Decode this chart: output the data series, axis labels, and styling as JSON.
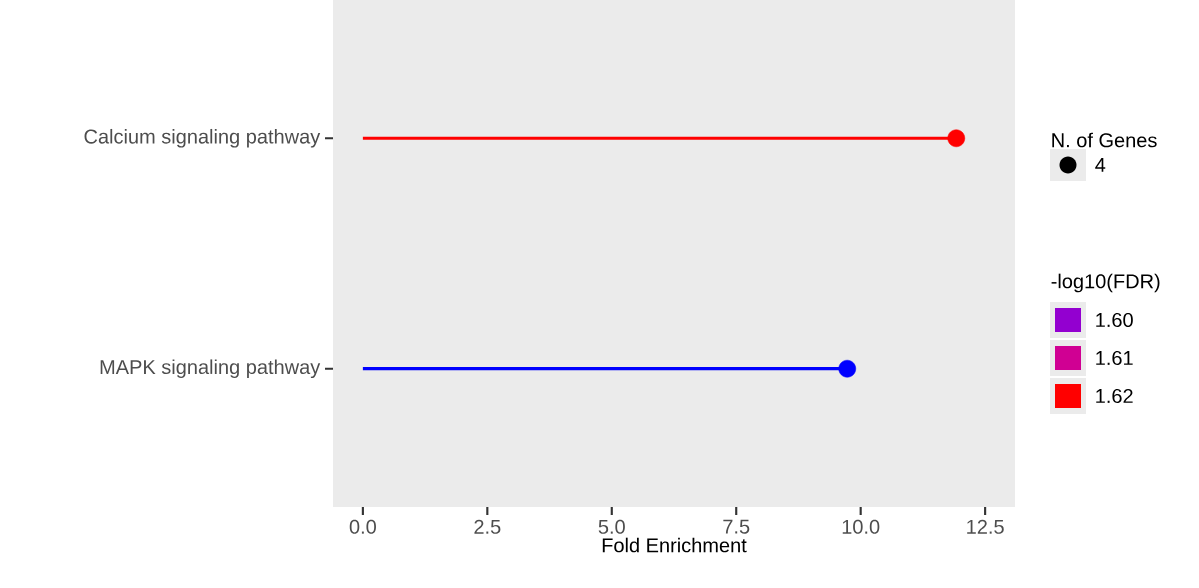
{
  "chart_data": {
    "type": "lollipop",
    "orientation": "horizontal",
    "xlabel": "Fold Enrichment",
    "legend_title": "N. of Genes",
    "clabel": "-log10(FDR)",
    "categories": [
      "Calcium signaling pathway",
      "MAPK signaling pathway"
    ],
    "values": [
      11.92,
      9.73
    ],
    "sizes": [
      4,
      4
    ],
    "size_legend": [
      4
    ],
    "colors": [
      "#ff0000",
      "#0000ff"
    ],
    "cticks": [
      {
        "value": 1.6,
        "label": "1.60"
      },
      {
        "value": 1.61,
        "label": "1.61"
      },
      {
        "value": 1.62,
        "label": "1.62"
      }
    ],
    "xlim": [
      -0.6,
      13.1
    ],
    "xticks": [
      {
        "value": 0,
        "label": "0.0"
      },
      {
        "value": 2.5,
        "label": "2.5"
      },
      {
        "value": 5,
        "label": "5.0"
      },
      {
        "value": 7.5,
        "label": "7.5"
      },
      {
        "value": 10,
        "label": "10.0"
      },
      {
        "value": 12.5,
        "label": "12.5"
      }
    ],
    "marker": "circle",
    "grid": false
  }
}
